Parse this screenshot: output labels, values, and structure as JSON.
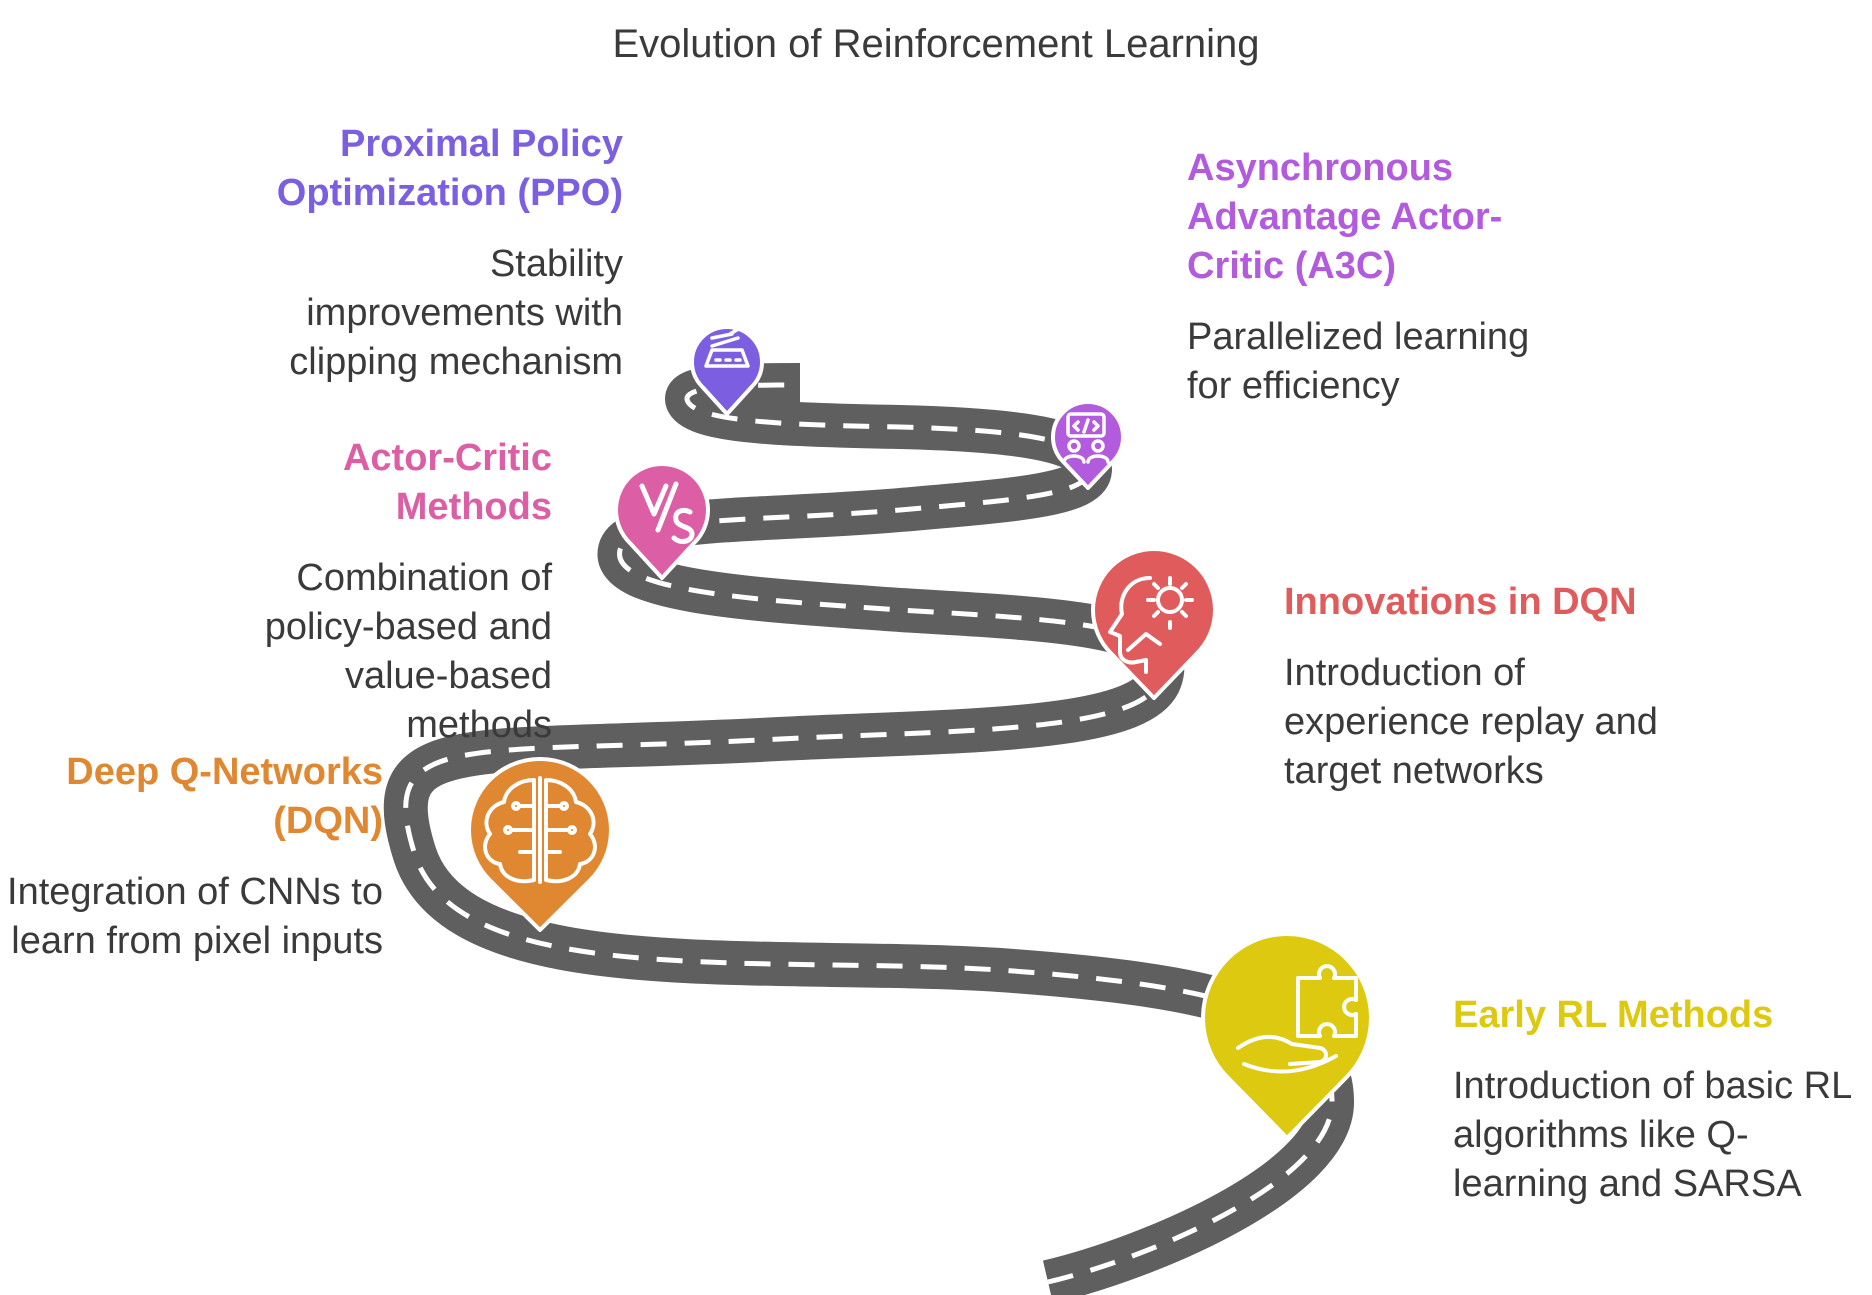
{
  "title": "Evolution of Reinforcement Learning",
  "milestones": [
    {
      "heading": "Early RL Methods",
      "description": "Introduction of basic RL algorithms like Q-learning and SARSA",
      "color": "#ddc910",
      "icon": "puzzle-hand-icon"
    },
    {
      "heading": "Deep Q-Networks (DQN)",
      "description": "Integration of CNNs to learn from pixel inputs",
      "color": "#e08731",
      "icon": "brain-circuit-icon"
    },
    {
      "heading": "Innovations in DQN",
      "description": "Introduction of experience replay and target networks",
      "color": "#e05c5c",
      "icon": "head-gear-icon"
    },
    {
      "heading": "Actor-Critic Methods",
      "description": "Combination of policy-based and value-based methods",
      "color": "#dc5fa6",
      "icon": "versus-icon"
    },
    {
      "heading": "Asynchronous Advantage Actor-Critic (A3C)",
      "description": "Parallelized learning for efficiency",
      "color": "#b25bdc",
      "icon": "team-code-icon"
    },
    {
      "heading": "Proximal Policy Optimization (PPO)",
      "description": "Stability improvements with clipping mechanism",
      "color": "#7b5fe0",
      "icon": "clipping-icon"
    }
  ],
  "road_color": "#5f5f5f"
}
